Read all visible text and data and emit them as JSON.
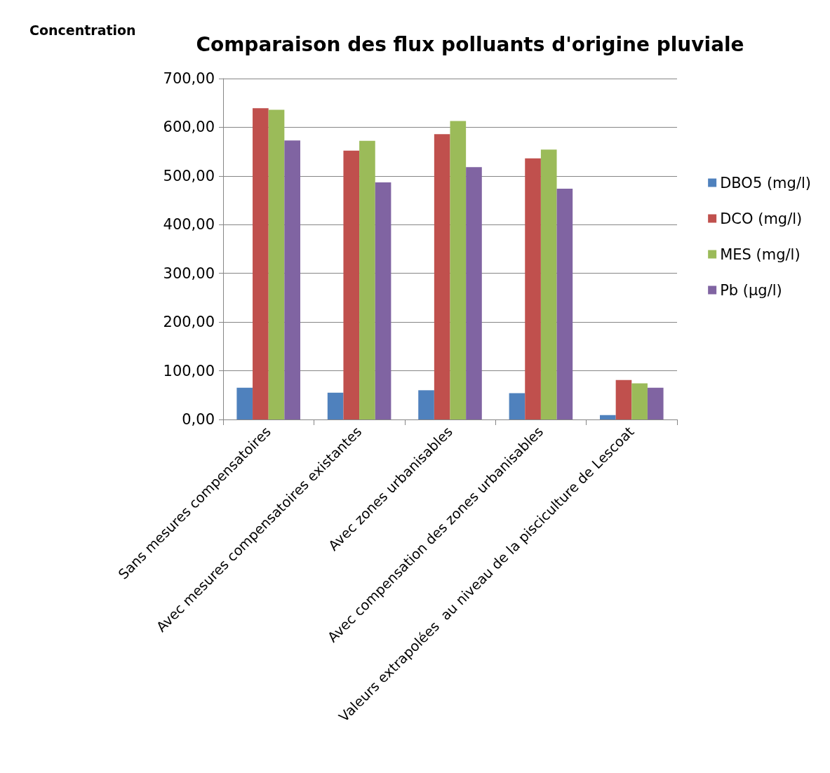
{
  "chart_data": {
    "type": "bar",
    "title": "Comparaison des flux polluants d'origine pluviale",
    "ylabel": "Concentration",
    "categories": [
      "Sans mesures compensatoires",
      "Avec mesures compensatoires existantes",
      "Avec zones urbanisables",
      "Avec compensation des zones urbanisables",
      "Valeurs extrapolées  au niveau de la pisciculture de Lescoat"
    ],
    "series": [
      {
        "name": "DBO5 (mg/l)",
        "color": "#4f81bd",
        "values": [
          65,
          55,
          60,
          54,
          9
        ]
      },
      {
        "name": "DCO (mg/l)",
        "color": "#c0504d",
        "values": [
          639,
          552,
          586,
          536,
          81
        ]
      },
      {
        "name": "MES (mg/l)",
        "color": "#9bbb59",
        "values": [
          636,
          572,
          613,
          554,
          74
        ]
      },
      {
        "name": "Pb (µg/l)",
        "color": "#8064a2",
        "values": [
          573,
          487,
          518,
          474,
          65
        ]
      }
    ],
    "ylim": [
      0,
      700
    ],
    "yticks": [
      {
        "value": 0,
        "label": "0,00"
      },
      {
        "value": 100,
        "label": "100,00"
      },
      {
        "value": 200,
        "label": "200,00"
      },
      {
        "value": 300,
        "label": "300,00"
      },
      {
        "value": 400,
        "label": "400,00"
      },
      {
        "value": 500,
        "label": "500,00"
      },
      {
        "value": 600,
        "label": "600,00"
      },
      {
        "value": 700,
        "label": "700,00"
      }
    ],
    "grid": "y",
    "legend": "right"
  }
}
